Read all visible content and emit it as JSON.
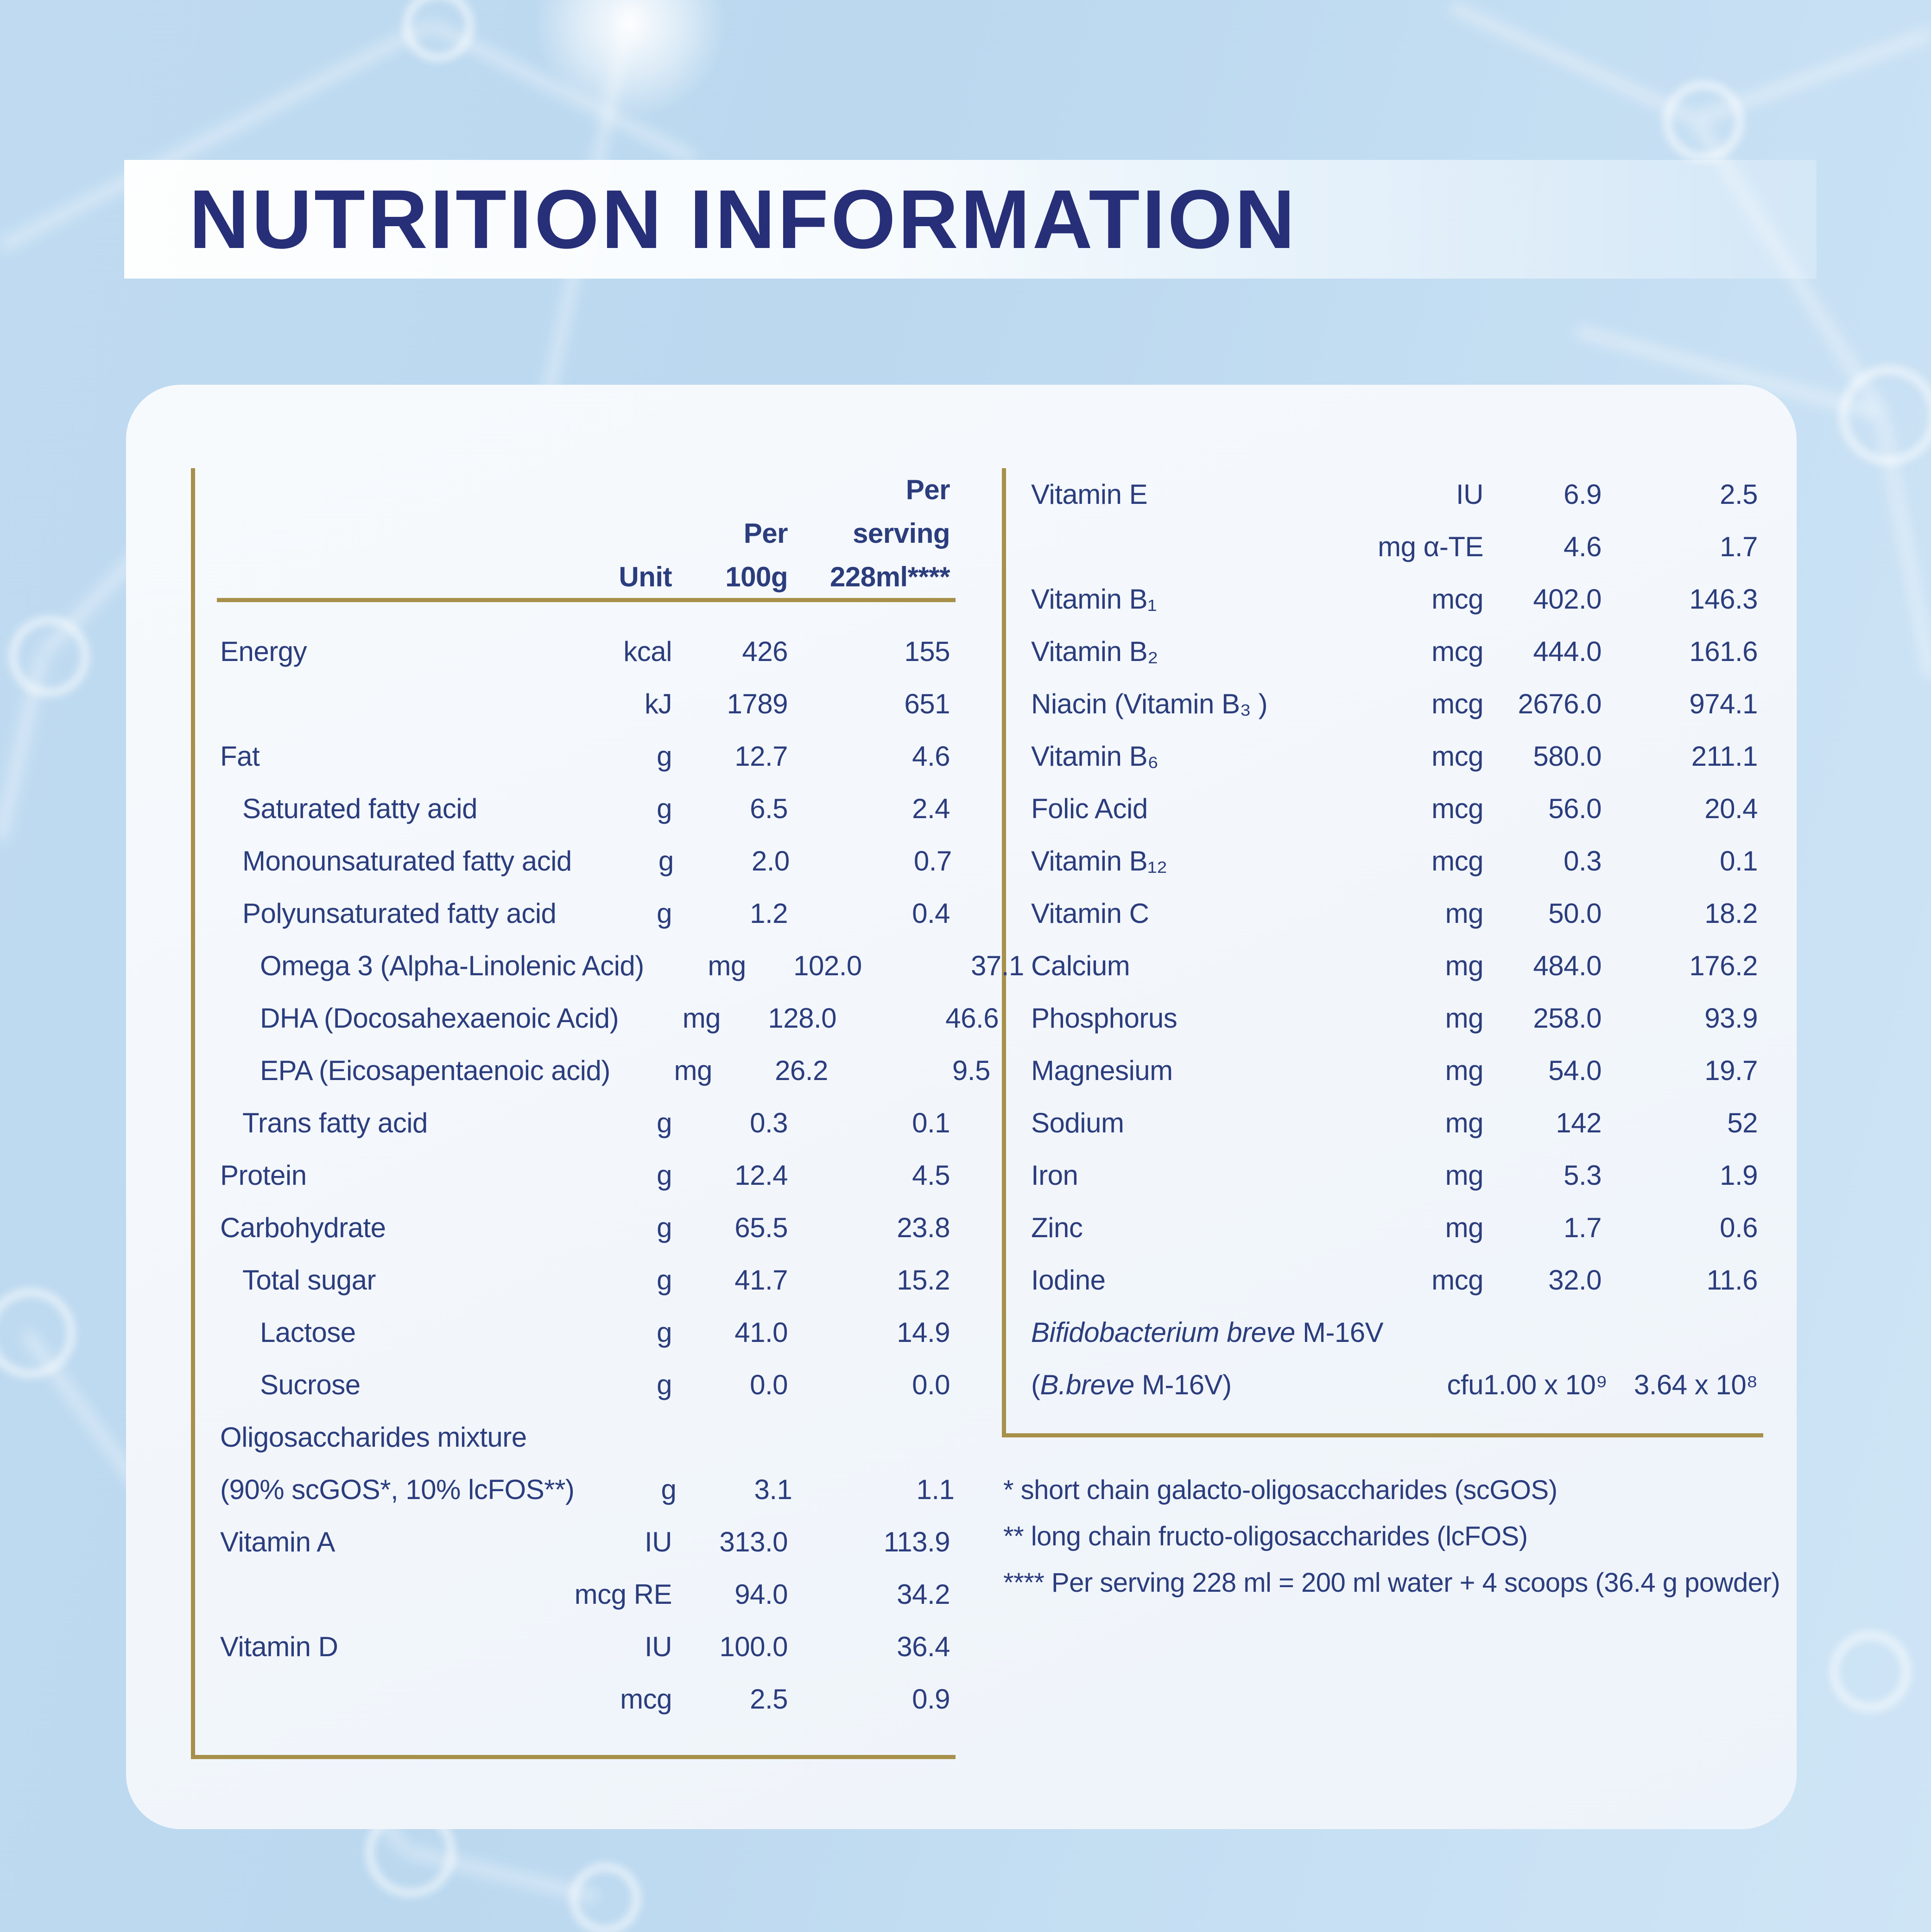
{
  "title": "NUTRITION INFORMATION",
  "colors": {
    "navy": "#2b3d7d",
    "navy_dark": "#272f78",
    "gold": "#a7904a",
    "background": "#c2dcf1",
    "card": "#f3f7fc"
  },
  "header": {
    "unit": "Unit",
    "per_100g": [
      "Per",
      "100g"
    ],
    "per_serving": [
      "Per",
      "serving",
      "228ml****"
    ]
  },
  "left_table": {
    "rows": [
      {
        "label": "Energy",
        "indent": 0,
        "unit": "kcal",
        "per100": "426",
        "serving": "155"
      },
      {
        "label": "",
        "indent": 0,
        "unit": "kJ",
        "per100": "1789",
        "serving": "651"
      },
      {
        "label": "Fat",
        "indent": 0,
        "unit": "g",
        "per100": "12.7",
        "serving": "4.6"
      },
      {
        "label": "Saturated fatty acid",
        "indent": 1,
        "unit": "g",
        "per100": "6.5",
        "serving": "2.4"
      },
      {
        "label": "Monounsaturated fatty acid",
        "indent": 1,
        "unit": "g",
        "per100": "2.0",
        "serving": "0.7"
      },
      {
        "label": "Polyunsaturated fatty acid",
        "indent": 1,
        "unit": "g",
        "per100": "1.2",
        "serving": "0.4"
      },
      {
        "label": "Omega 3 (Alpha-Linolenic Acid)",
        "indent": 2,
        "unit": "mg",
        "per100": "102.0",
        "serving": "37.1"
      },
      {
        "label": "DHA (Docosahexaenoic Acid)",
        "indent": 2,
        "unit": "mg",
        "per100": "128.0",
        "serving": "46.6"
      },
      {
        "label": "EPA (Eicosapentaenoic acid)",
        "indent": 2,
        "unit": "mg",
        "per100": "26.2",
        "serving": "9.5"
      },
      {
        "label": "Trans fatty acid",
        "indent": 1,
        "unit": "g",
        "per100": "0.3",
        "serving": "0.1"
      },
      {
        "label": "Protein",
        "indent": 0,
        "unit": "g",
        "per100": "12.4",
        "serving": "4.5"
      },
      {
        "label": "Carbohydrate",
        "indent": 0,
        "unit": "g",
        "per100": "65.5",
        "serving": "23.8"
      },
      {
        "label": "Total sugar",
        "indent": 1,
        "unit": "g",
        "per100": "41.7",
        "serving": "15.2"
      },
      {
        "label": "Lactose",
        "indent": 2,
        "unit": "g",
        "per100": "41.0",
        "serving": "14.9"
      },
      {
        "label": "Sucrose",
        "indent": 2,
        "unit": "g",
        "per100": "0.0",
        "serving": "0.0"
      },
      {
        "label": "Oligosaccharides mixture",
        "indent": 0,
        "unit": "",
        "per100": "",
        "serving": ""
      },
      {
        "label": "(90% scGOS*, 10% lcFOS**)",
        "indent": 0,
        "unit": "g",
        "per100": "3.1",
        "serving": "1.1"
      },
      {
        "label": "Vitamin A",
        "indent": 0,
        "unit": "IU",
        "per100": "313.0",
        "serving": "113.9"
      },
      {
        "label": "",
        "indent": 0,
        "unit": "mcg RE",
        "per100": "94.0",
        "serving": "34.2"
      },
      {
        "label": "Vitamin D",
        "indent": 0,
        "unit": "IU",
        "per100": "100.0",
        "serving": "36.4"
      },
      {
        "label": "",
        "indent": 0,
        "unit": "mcg",
        "per100": "2.5",
        "serving": "0.9"
      }
    ]
  },
  "right_table": {
    "rows": [
      {
        "label": "Vitamin E",
        "indent": 0,
        "unit": "IU",
        "per100": "6.9",
        "serving": "2.5"
      },
      {
        "label": "",
        "indent": 0,
        "unit": "mg α-TE",
        "per100": "4.6",
        "serving": "1.7"
      },
      {
        "label": "Vitamin B₁",
        "indent": 0,
        "unit": "mcg",
        "per100": "402.0",
        "serving": "146.3"
      },
      {
        "label": "Vitamin B₂",
        "indent": 0,
        "unit": "mcg",
        "per100": "444.0",
        "serving": "161.6"
      },
      {
        "label": "Niacin (Vitamin B₃ )",
        "indent": 0,
        "unit": "mcg",
        "per100": "2676.0",
        "serving": "974.1"
      },
      {
        "label": "Vitamin B₆",
        "indent": 0,
        "unit": "mcg",
        "per100": "580.0",
        "serving": "211.1"
      },
      {
        "label": "Folic Acid",
        "indent": 0,
        "unit": "mcg",
        "per100": "56.0",
        "serving": "20.4"
      },
      {
        "label": "Vitamin B₁₂",
        "indent": 0,
        "unit": "mcg",
        "per100": "0.3",
        "serving": "0.1"
      },
      {
        "label": "Vitamin C",
        "indent": 0,
        "unit": "mg",
        "per100": "50.0",
        "serving": "18.2"
      },
      {
        "label": "Calcium",
        "indent": 0,
        "unit": "mg",
        "per100": "484.0",
        "serving": "176.2"
      },
      {
        "label": "Phosphorus",
        "indent": 0,
        "unit": "mg",
        "per100": "258.0",
        "serving": "93.9"
      },
      {
        "label": "Magnesium",
        "indent": 0,
        "unit": "mg",
        "per100": "54.0",
        "serving": "19.7"
      },
      {
        "label": "Sodium",
        "indent": 0,
        "unit": "mg",
        "per100": "142",
        "serving": "52"
      },
      {
        "label": "Iron",
        "indent": 0,
        "unit": "mg",
        "per100": "5.3",
        "serving": "1.9"
      },
      {
        "label": "Zinc",
        "indent": 0,
        "unit": "mg",
        "per100": "1.7",
        "serving": "0.6"
      },
      {
        "label": "Iodine",
        "indent": 0,
        "unit": "mcg",
        "per100": "32.0",
        "serving": "11.6"
      },
      {
        "parts": [
          {
            "text": "Bifidobacterium breve",
            "italic": true
          },
          {
            "text": " M-16V",
            "italic": false
          }
        ],
        "indent": 0,
        "unit": "",
        "per100": "",
        "serving": ""
      },
      {
        "parts": [
          {
            "text": "(",
            "italic": false
          },
          {
            "text": "B.breve",
            "italic": true
          },
          {
            "text": " M-16V)",
            "italic": false
          }
        ],
        "indent": 0,
        "unit": "cfu",
        "per100": "1.00 x 10⁹",
        "serving": "3.64 x 10⁸"
      }
    ]
  },
  "footnotes": [
    "* short chain galacto-oligosaccharides (scGOS)",
    "** long chain fructo-oligosaccharides (lcFOS)",
    "**** Per serving 228 ml = 200 ml water + 4 scoops (36.4 g powder)"
  ]
}
